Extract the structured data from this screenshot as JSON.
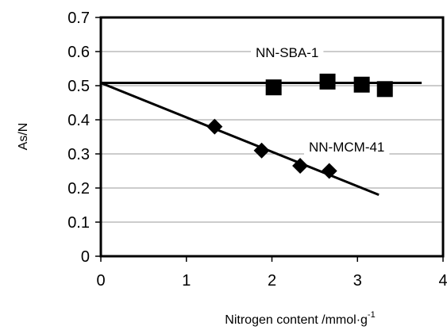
{
  "chart_data": {
    "type": "scatter",
    "xlabel": "Nitrogen content /mmol·g",
    "xlabel_sup": "-1",
    "ylabel": "As/N",
    "xlim": [
      0,
      4
    ],
    "ylim": [
      0,
      0.7
    ],
    "x_ticks": [
      "0",
      "1",
      "2",
      "3",
      "4"
    ],
    "y_ticks": [
      "0",
      "0.1",
      "0.2",
      "0.3",
      "0.4",
      "0.5",
      "0.6",
      "0.7"
    ],
    "grid": "horizontal",
    "series": [
      {
        "name": "NN-SBA-1",
        "marker": "square",
        "x": [
          2.02,
          2.65,
          3.05,
          3.32
        ],
        "y": [
          0.495,
          0.512,
          0.503,
          0.49
        ],
        "fit_line": {
          "x": [
            0,
            3.75
          ],
          "y": [
            0.508,
            0.508
          ]
        }
      },
      {
        "name": "NN-MCM-41",
        "marker": "diamond",
        "x": [
          1.33,
          1.88,
          2.33,
          2.67
        ],
        "y": [
          0.38,
          0.31,
          0.265,
          0.25
        ],
        "fit_line": {
          "x": [
            0,
            3.25
          ],
          "y": [
            0.508,
            0.18
          ]
        }
      }
    ],
    "colors": {
      "marker": "#000000",
      "line": "#000000",
      "grid": "#9a9a9a"
    }
  }
}
